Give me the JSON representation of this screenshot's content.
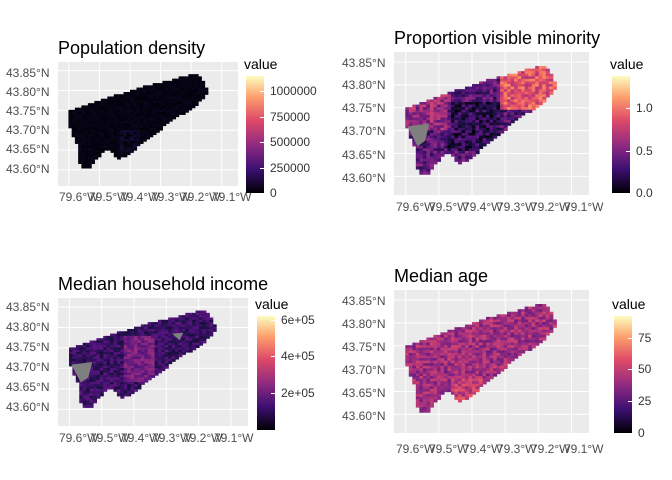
{
  "chart_data": [
    {
      "type": "choropleth",
      "title": "Population density",
      "legend_title": "value",
      "legend_ticks": [
        "1000000",
        "750000",
        "500000",
        "250000",
        "0"
      ],
      "legend_values": [
        1000000,
        750000,
        500000,
        250000,
        0
      ],
      "legend_range": [
        0,
        1150000
      ],
      "y_ticks": [
        "43.85°N",
        "43.80°N",
        "43.75°N",
        "43.70°N",
        "43.65°N",
        "43.60°N"
      ],
      "x_ticks": [
        "79.6°W",
        "79.5°W",
        "79.4°W",
        "79.3°W",
        "79.2°W",
        "79.1°W"
      ],
      "fill_style": "dark"
    },
    {
      "type": "choropleth",
      "title": "Proportion visible minority",
      "legend_title": "value",
      "legend_ticks": [
        "1.0",
        "0.5",
        "0.0"
      ],
      "legend_values": [
        1.0,
        0.5,
        0.0
      ],
      "legend_range": [
        0,
        1.38
      ],
      "y_ticks": [
        "43.85°N",
        "43.80°N",
        "43.75°N",
        "43.70°N",
        "43.65°N",
        "43.60°N"
      ],
      "x_ticks": [
        "79.6°W",
        "79.5°W",
        "79.4°W",
        "79.3°W",
        "79.2°W",
        "79.1°W"
      ],
      "fill_style": "minority"
    },
    {
      "type": "choropleth",
      "title": "Median household income",
      "legend_title": "value",
      "legend_ticks": [
        "6e+05",
        "4e+05",
        "2e+05"
      ],
      "legend_values": [
        600000,
        400000,
        200000
      ],
      "legend_range": [
        0,
        620000
      ],
      "y_ticks": [
        "43.85°N",
        "43.80°N",
        "43.75°N",
        "43.70°N",
        "43.65°N",
        "43.60°N"
      ],
      "x_ticks": [
        "79.6°W",
        "79.5°W",
        "79.4°W",
        "79.3°W",
        "79.2°W",
        "79.1°W"
      ],
      "fill_style": "income"
    },
    {
      "type": "choropleth",
      "title": "Median age",
      "legend_title": "value",
      "legend_ticks": [
        "75",
        "50",
        "25",
        "0"
      ],
      "legend_values": [
        75,
        50,
        25,
        0
      ],
      "legend_range": [
        0,
        92
      ],
      "y_ticks": [
        "43.85°N",
        "43.80°N",
        "43.75°N",
        "43.70°N",
        "43.65°N",
        "43.60°N"
      ],
      "x_ticks": [
        "79.6°W",
        "79.5°W",
        "79.4°W",
        "79.3°W",
        "79.2°W",
        "79.1°W"
      ],
      "fill_style": "age"
    }
  ]
}
